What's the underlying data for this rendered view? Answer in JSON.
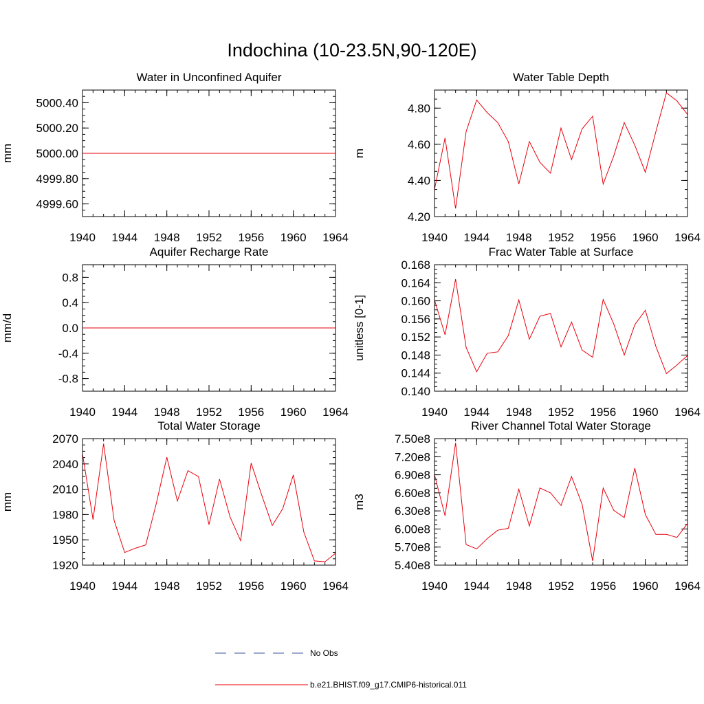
{
  "figure": {
    "title": "Indochina (10-23.5N,90-120E)"
  },
  "legend": {
    "obs_label": "No Obs",
    "model_label": "b.e21.BHIST.f09_g17.CMIP6-historical.011",
    "obs_color": "#3a4fa0",
    "model_color": "#e8000b"
  },
  "chart_data": [
    {
      "type": "line",
      "title": "Water in Unconfined Aquifer",
      "ylabel": "mm",
      "xlim": [
        1940,
        1964
      ],
      "ylim": [
        4999.5,
        5000.5
      ],
      "xticks": [
        1940,
        1944,
        1948,
        1952,
        1956,
        1960,
        1964
      ],
      "xtick_labels": [
        "1940",
        "1944",
        "1948",
        "1952",
        "1956",
        "1960",
        "1964"
      ],
      "yticks": [
        4999.6,
        4999.8,
        5000.0,
        5000.2,
        5000.4
      ],
      "ytick_labels": [
        "4999.60",
        "4999.80",
        "5000.00",
        "5000.20",
        "5000.40"
      ],
      "x": [
        1940,
        1941,
        1942,
        1943,
        1944,
        1945,
        1946,
        1947,
        1948,
        1949,
        1950,
        1951,
        1952,
        1953,
        1954,
        1955,
        1956,
        1957,
        1958,
        1959,
        1960,
        1961,
        1962,
        1963,
        1964
      ],
      "series": [
        {
          "values": [
            5000,
            5000,
            5000,
            5000,
            5000,
            5000,
            5000,
            5000,
            5000,
            5000,
            5000,
            5000,
            5000,
            5000,
            5000,
            5000,
            5000,
            5000,
            5000,
            5000,
            5000,
            5000,
            5000,
            5000,
            5000
          ]
        }
      ]
    },
    {
      "type": "line",
      "title": "Water Table Depth",
      "ylabel": "m",
      "xlim": [
        1940,
        1964
      ],
      "ylim": [
        4.2,
        4.9
      ],
      "xticks": [
        1940,
        1944,
        1948,
        1952,
        1956,
        1960,
        1964
      ],
      "xtick_labels": [
        "1940",
        "1944",
        "1948",
        "1952",
        "1956",
        "1960",
        "1964"
      ],
      "yticks": [
        4.2,
        4.4,
        4.6,
        4.8
      ],
      "ytick_labels": [
        "4.20",
        "4.40",
        "4.60",
        "4.80"
      ],
      "x": [
        1940,
        1941,
        1942,
        1943,
        1944,
        1945,
        1946,
        1947,
        1948,
        1949,
        1950,
        1951,
        1952,
        1953,
        1954,
        1955,
        1956,
        1957,
        1958,
        1959,
        1960,
        1961,
        1962,
        1963,
        1964
      ],
      "series": [
        {
          "values": [
            4.35,
            4.635,
            4.245,
            4.67,
            4.845,
            4.775,
            4.72,
            4.615,
            4.38,
            4.615,
            4.5,
            4.44,
            4.69,
            4.515,
            4.685,
            4.755,
            4.38,
            4.535,
            4.72,
            4.595,
            4.445,
            4.67,
            4.885,
            4.84,
            4.765
          ]
        }
      ]
    },
    {
      "type": "line",
      "title": "Aquifer Recharge Rate",
      "ylabel": "mm/d",
      "xlim": [
        1940,
        1964
      ],
      "ylim": [
        -1.0,
        1.0
      ],
      "xticks": [
        1940,
        1944,
        1948,
        1952,
        1956,
        1960,
        1964
      ],
      "xtick_labels": [
        "1940",
        "1944",
        "1948",
        "1952",
        "1956",
        "1960",
        "1964"
      ],
      "yticks": [
        -0.8,
        -0.4,
        0.0,
        0.4,
        0.8
      ],
      "ytick_labels": [
        "-0.8",
        "-0.4",
        "0.0",
        "0.4",
        "0.8"
      ],
      "x": [
        1940,
        1941,
        1942,
        1943,
        1944,
        1945,
        1946,
        1947,
        1948,
        1949,
        1950,
        1951,
        1952,
        1953,
        1954,
        1955,
        1956,
        1957,
        1958,
        1959,
        1960,
        1961,
        1962,
        1963,
        1964
      ],
      "series": [
        {
          "values": [
            0,
            0,
            0,
            0,
            0,
            0,
            0,
            0,
            0,
            0,
            0,
            0,
            0,
            0,
            0,
            0,
            0,
            0,
            0,
            0,
            0,
            0,
            0,
            0,
            0
          ]
        }
      ]
    },
    {
      "type": "line",
      "title": "Frac Water Table at Surface",
      "ylabel": "unitless [0-1]",
      "xlim": [
        1940,
        1964
      ],
      "ylim": [
        0.14,
        0.168
      ],
      "xticks": [
        1940,
        1944,
        1948,
        1952,
        1956,
        1960,
        1964
      ],
      "xtick_labels": [
        "1940",
        "1944",
        "1948",
        "1952",
        "1956",
        "1960",
        "1964"
      ],
      "yticks": [
        0.14,
        0.144,
        0.148,
        0.152,
        0.156,
        0.16,
        0.164,
        0.168
      ],
      "ytick_labels": [
        "0.140",
        "0.144",
        "0.148",
        "0.152",
        "0.156",
        "0.160",
        "0.164",
        "0.168"
      ],
      "x": [
        1940,
        1941,
        1942,
        1943,
        1944,
        1945,
        1946,
        1947,
        1948,
        1949,
        1950,
        1951,
        1952,
        1953,
        1954,
        1955,
        1956,
        1957,
        1958,
        1959,
        1960,
        1961,
        1962,
        1963,
        1964
      ],
      "series": [
        {
          "values": [
            0.1602,
            0.1525,
            0.1648,
            0.1497,
            0.1443,
            0.1484,
            0.1487,
            0.1523,
            0.1602,
            0.1515,
            0.1566,
            0.1572,
            0.1498,
            0.1553,
            0.1491,
            0.1475,
            0.1603,
            0.1549,
            0.148,
            0.1547,
            0.1579,
            0.1499,
            0.1439,
            0.1458,
            0.1479
          ]
        }
      ]
    },
    {
      "type": "line",
      "title": "Total Water Storage",
      "ylabel": "mm",
      "xlim": [
        1940,
        1964
      ],
      "ylim": [
        1920,
        2070
      ],
      "xticks": [
        1940,
        1944,
        1948,
        1952,
        1956,
        1960,
        1964
      ],
      "xtick_labels": [
        "1940",
        "1944",
        "1948",
        "1952",
        "1956",
        "1960",
        "1964"
      ],
      "yticks": [
        1920,
        1950,
        1980,
        2010,
        2040,
        2070
      ],
      "ytick_labels": [
        "1920",
        "1950",
        "1980",
        "2010",
        "2040",
        "2070"
      ],
      "x": [
        1940,
        1941,
        1942,
        1943,
        1944,
        1945,
        1946,
        1947,
        1948,
        1949,
        1950,
        1951,
        1952,
        1953,
        1954,
        1955,
        1956,
        1957,
        1958,
        1959,
        1960,
        1961,
        1962,
        1963,
        1964
      ],
      "series": [
        {
          "values": [
            2052,
            1974,
            2064,
            1973,
            1935,
            1940,
            1944,
            1993,
            2048,
            1996,
            2032,
            2025,
            1968,
            2022,
            1977,
            1949,
            2041,
            2003,
            1967,
            1987,
            2027,
            1959,
            1925,
            1924,
            1934
          ]
        }
      ]
    },
    {
      "type": "line",
      "title": "River Channel Total Water Storage",
      "ylabel": "m3",
      "xlim": [
        1940,
        1964
      ],
      "ylim": [
        540000000,
        750000000
      ],
      "xticks": [
        1940,
        1944,
        1948,
        1952,
        1956,
        1960,
        1964
      ],
      "xtick_labels": [
        "1940",
        "1944",
        "1948",
        "1952",
        "1956",
        "1960",
        "1964"
      ],
      "yticks": [
        540000000,
        570000000,
        600000000,
        630000000,
        660000000,
        690000000,
        720000000,
        750000000
      ],
      "ytick_labels": [
        "5.40e8",
        "5.70e8",
        "6.00e8",
        "6.30e8",
        "6.60e8",
        "6.90e8",
        "7.20e8",
        "7.50e8"
      ],
      "x": [
        1940,
        1941,
        1942,
        1943,
        1944,
        1945,
        1946,
        1947,
        1948,
        1949,
        1950,
        1951,
        1952,
        1953,
        1954,
        1955,
        1956,
        1957,
        1958,
        1959,
        1960,
        1961,
        1962,
        1963,
        1964
      ],
      "series": [
        {
          "values": [
            690000000,
            622000000,
            743000000,
            574000000,
            567000000,
            584000000,
            598000000,
            601000000,
            666000000,
            605000000,
            668000000,
            660000000,
            639000000,
            687000000,
            641000000,
            547000000,
            668000000,
            631000000,
            619000000,
            701000000,
            624000000,
            591000000,
            591000000,
            586000000,
            609000000
          ]
        }
      ]
    }
  ]
}
